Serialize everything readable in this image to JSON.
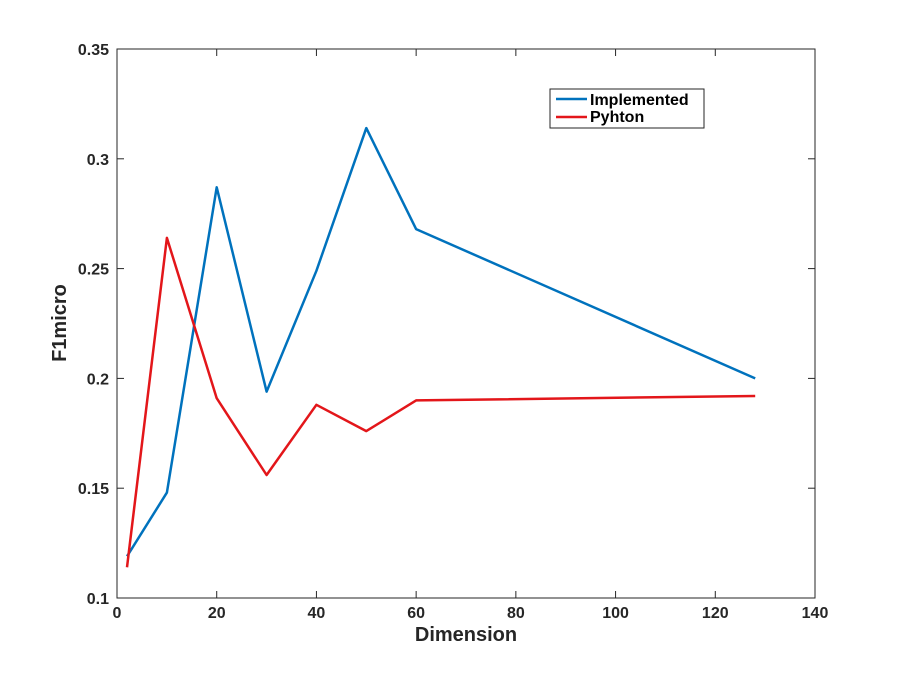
{
  "chart_data": {
    "type": "line",
    "title": "",
    "xlabel": "Dimension",
    "ylabel": "F1micro",
    "xlim": [
      0,
      140
    ],
    "ylim": [
      0.1,
      0.35
    ],
    "xticks": [
      "0",
      "20",
      "40",
      "60",
      "80",
      "100",
      "120",
      "140"
    ],
    "yticks": [
      "0.1",
      "0.15",
      "0.2",
      "0.25",
      "0.3",
      "0.35"
    ],
    "grid": false,
    "legend_position": "top-right",
    "series": [
      {
        "name": "Implemented",
        "color": "#0072bd",
        "x": [
          2,
          10,
          20,
          30,
          40,
          50,
          60,
          128
        ],
        "y": [
          0.119,
          0.148,
          0.287,
          0.194,
          0.249,
          0.314,
          0.268,
          0.2
        ]
      },
      {
        "name": "Pyhton",
        "color": "#e3161a",
        "x": [
          2,
          10,
          20,
          30,
          40,
          50,
          60,
          128
        ],
        "y": [
          0.114,
          0.264,
          0.191,
          0.156,
          0.188,
          0.176,
          0.19,
          0.192
        ]
      }
    ]
  }
}
